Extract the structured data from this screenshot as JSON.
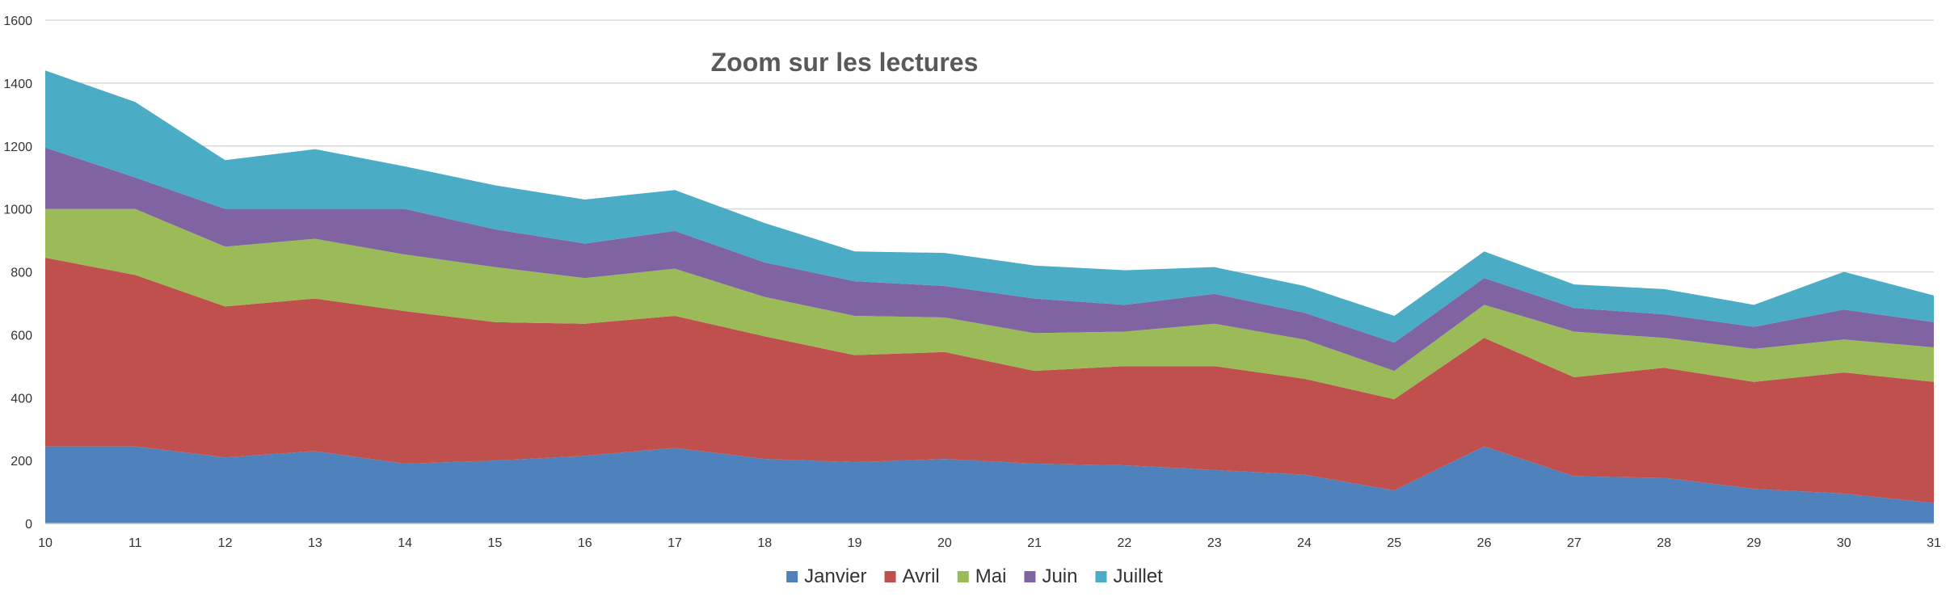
{
  "chart_data": {
    "type": "area",
    "stacked": true,
    "title": "Zoom sur les lectures",
    "xlabel": "",
    "ylabel": "",
    "categories": [
      "10",
      "11",
      "12",
      "13",
      "14",
      "15",
      "16",
      "17",
      "18",
      "19",
      "20",
      "21",
      "22",
      "23",
      "24",
      "25",
      "26",
      "27",
      "28",
      "29",
      "30",
      "31"
    ],
    "ylim": [
      0,
      1600
    ],
    "yticks": [
      "0",
      "200",
      "400",
      "600",
      "800",
      "1000",
      "1200",
      "1400",
      "1600"
    ],
    "grid": true,
    "legend_position": "bottom",
    "series": [
      {
        "name": "Janvier",
        "color": "#4F81BD",
        "values": [
          245,
          245,
          210,
          230,
          190,
          200,
          215,
          240,
          205,
          195,
          205,
          190,
          185,
          170,
          155,
          105,
          245,
          150,
          145,
          110,
          95,
          65
        ]
      },
      {
        "name": "Avril",
        "color": "#C0504D",
        "values": [
          600,
          545,
          480,
          485,
          485,
          440,
          420,
          420,
          390,
          340,
          340,
          295,
          315,
          330,
          305,
          290,
          345,
          315,
          350,
          340,
          385,
          385
        ]
      },
      {
        "name": "Mai",
        "color": "#9BBB59",
        "values": [
          155,
          210,
          190,
          190,
          180,
          175,
          145,
          150,
          125,
          125,
          110,
          120,
          110,
          135,
          125,
          90,
          105,
          145,
          95,
          105,
          105,
          110
        ]
      },
      {
        "name": "Juin",
        "color": "#8064A2",
        "values": [
          195,
          100,
          120,
          95,
          145,
          120,
          110,
          120,
          110,
          110,
          100,
          110,
          85,
          95,
          85,
          90,
          85,
          75,
          75,
          70,
          95,
          80
        ]
      },
      {
        "name": "Juillet",
        "color": "#4BACC6",
        "values": [
          245,
          240,
          155,
          190,
          135,
          140,
          140,
          130,
          125,
          95,
          105,
          105,
          110,
          85,
          85,
          85,
          85,
          75,
          80,
          70,
          120,
          85
        ]
      }
    ]
  }
}
